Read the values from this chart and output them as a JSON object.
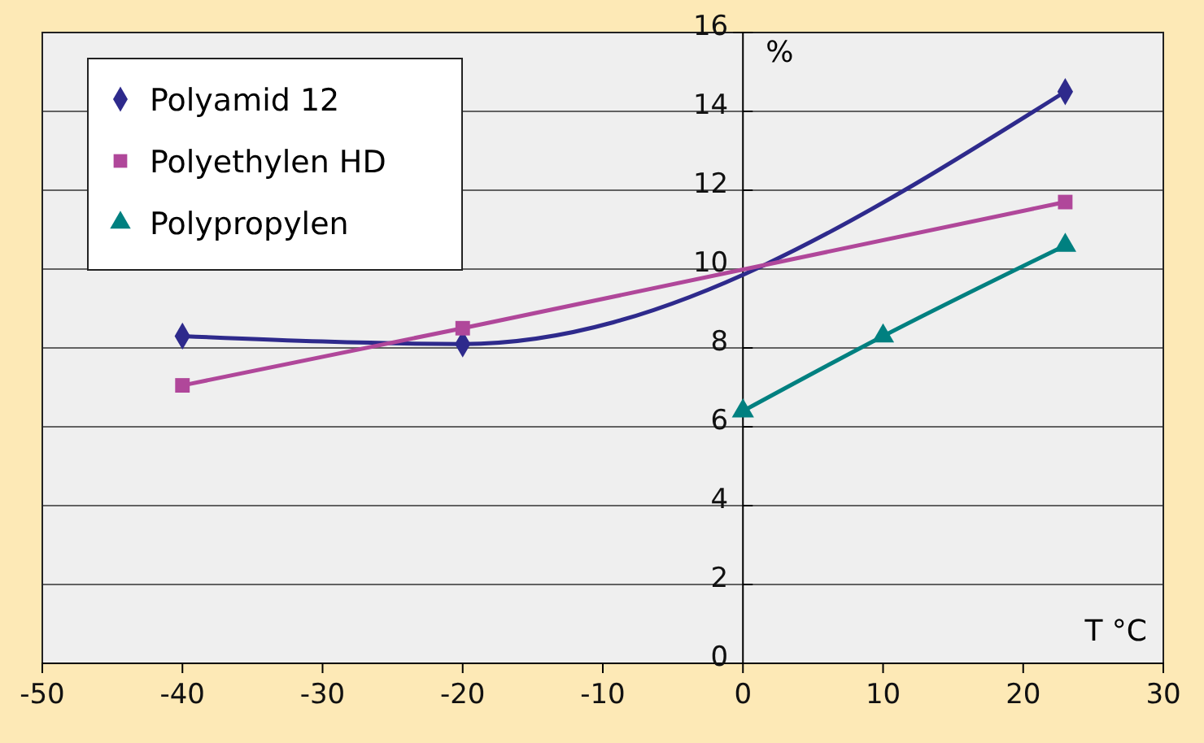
{
  "chart_data": {
    "type": "line",
    "xlabel": "T °C",
    "ylabel": "%",
    "xlim": [
      -50,
      30
    ],
    "xticks": [
      -50,
      -40,
      -30,
      -20,
      -10,
      0,
      10,
      20,
      30
    ],
    "ylim": [
      0,
      16
    ],
    "yticks": [
      0,
      2,
      4,
      6,
      8,
      10,
      12,
      14,
      16
    ],
    "grid": "y",
    "legend": "top left",
    "series": [
      {
        "name": "Polyamid 12",
        "color": "#2e2a8c",
        "marker": "diamond",
        "x": [
          -40,
          -20,
          23
        ],
        "values": [
          8.3,
          8.1,
          14.5
        ]
      },
      {
        "name": "Polyethylen HD",
        "color": "#b0479a",
        "marker": "square",
        "x": [
          -40,
          -20,
          23
        ],
        "values": [
          7.05,
          8.5,
          11.7
        ]
      },
      {
        "name": "Polypropylen",
        "color": "#008080",
        "marker": "triangle",
        "x": [
          0,
          10,
          23
        ],
        "values": [
          6.4,
          8.3,
          10.6
        ]
      }
    ]
  }
}
